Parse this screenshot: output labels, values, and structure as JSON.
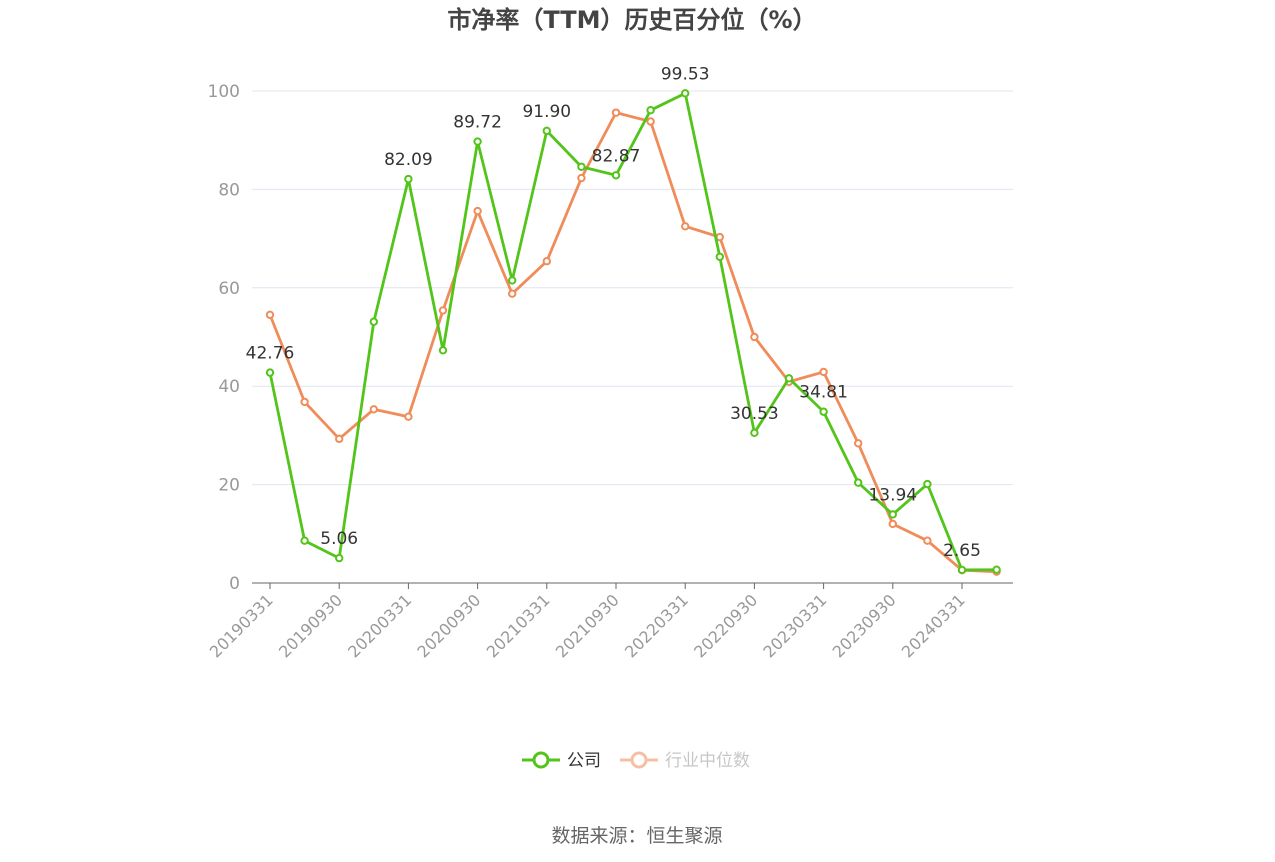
{
  "chart_data": {
    "type": "line",
    "title": "市净率（TTM）历史百分位（%）",
    "x": [
      "20190331",
      "20190630",
      "20190930",
      "20191231",
      "20200331",
      "20200630",
      "20200930",
      "20201231",
      "20210331",
      "20210630",
      "20210930",
      "20211231",
      "20220331",
      "20220630",
      "20220930",
      "20221231",
      "20230331",
      "20230630",
      "20230930",
      "20231231",
      "20240331",
      "20240630"
    ],
    "x_tick_labels": [
      "20190331",
      "20190930",
      "20200331",
      "20200930",
      "20210331",
      "20210930",
      "20220331",
      "20220930",
      "20230331",
      "20230930",
      "20240331"
    ],
    "ylim": [
      0,
      100
    ],
    "y_ticks": [
      0,
      20,
      40,
      60,
      80,
      100
    ],
    "grid": true,
    "legend_position": "bottom",
    "series": [
      {
        "name": "公司",
        "color": "#52c41a",
        "values": [
          42.76,
          8.6,
          5.06,
          53.1,
          82.09,
          47.3,
          89.72,
          61.5,
          91.9,
          84.6,
          82.87,
          96.1,
          99.53,
          66.3,
          30.53,
          41.6,
          34.81,
          20.4,
          13.94,
          20.1,
          2.65,
          2.7
        ],
        "labels": [
          "42.76",
          null,
          "5.06",
          null,
          "82.09",
          null,
          "89.72",
          null,
          "91.90",
          null,
          "82.87",
          null,
          "99.53",
          null,
          "30.53",
          null,
          "34.81",
          null,
          "13.94",
          null,
          "2.65",
          null
        ]
      },
      {
        "name": "行业中位数",
        "color": "#f08c5a",
        "values": [
          54.5,
          36.8,
          29.3,
          35.3,
          33.8,
          55.4,
          75.6,
          58.8,
          65.4,
          82.3,
          95.6,
          93.8,
          72.5,
          70.3,
          50.0,
          40.9,
          42.9,
          28.4,
          12.0,
          8.6,
          2.6,
          2.3
        ]
      }
    ],
    "source": "数据来源：恒生聚源"
  }
}
